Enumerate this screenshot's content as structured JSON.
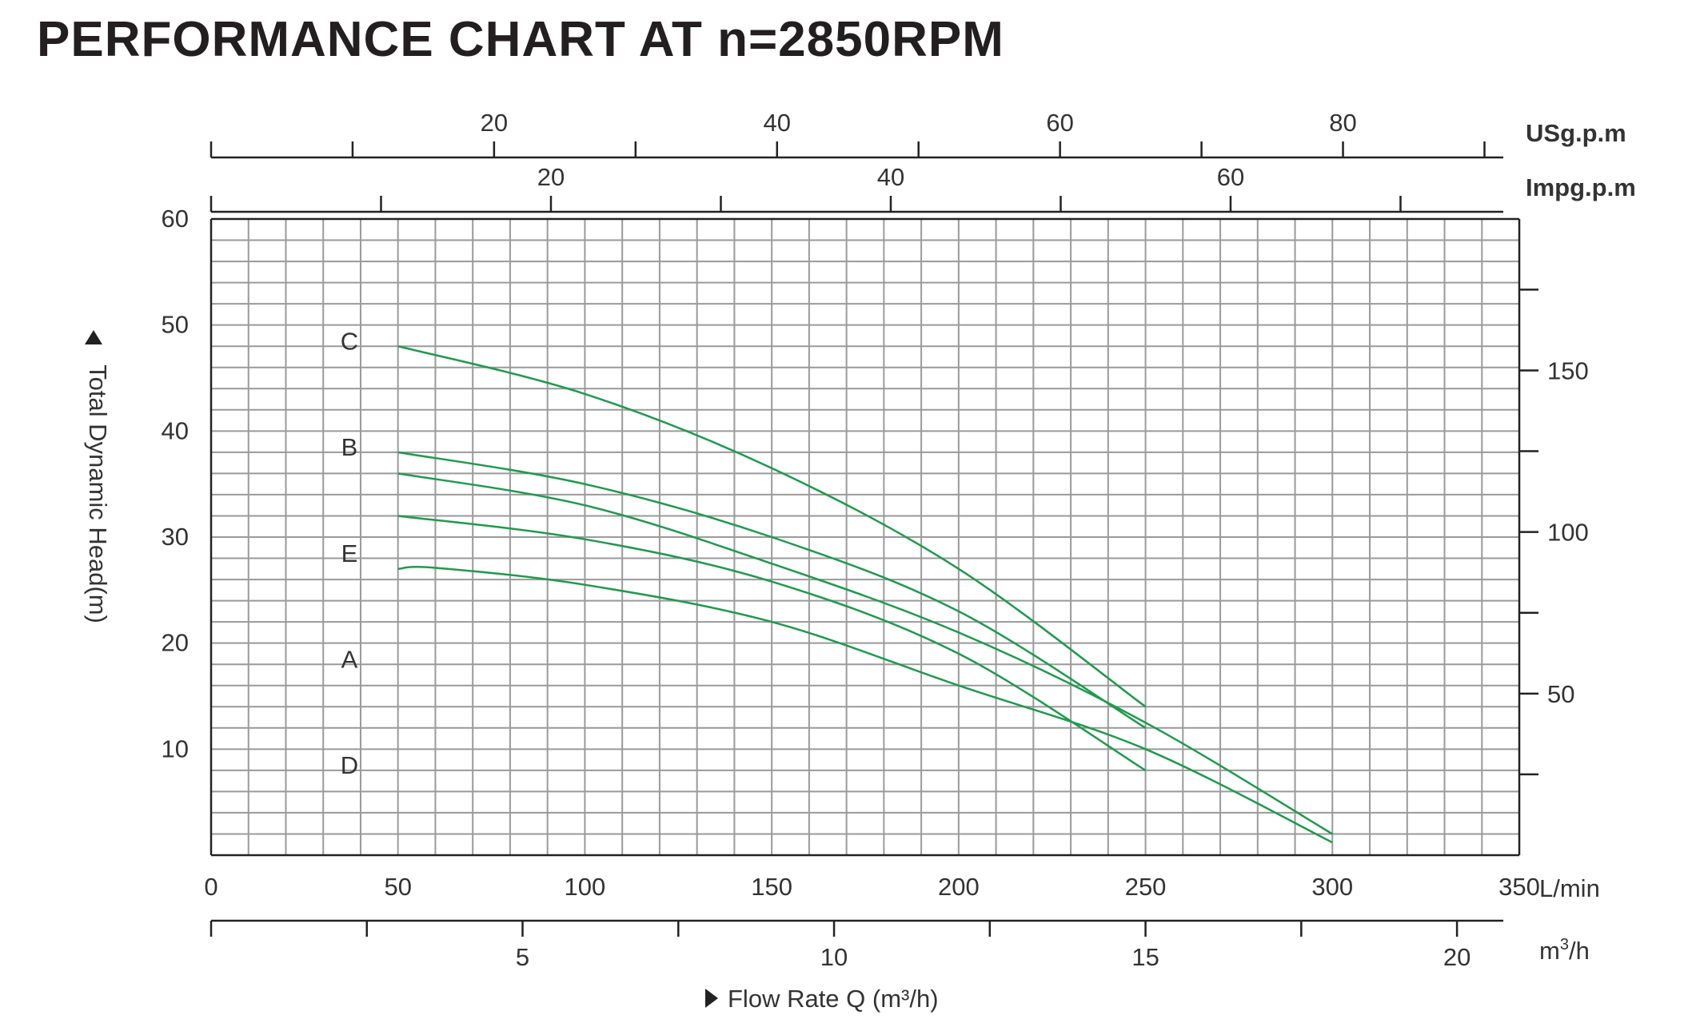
{
  "chart_data": {
    "type": "line",
    "title": "PERFORMANCE CHART AT n=2850RPM",
    "ylabel": "Total Dynamic Head(m)",
    "xlabel": "Flow Rate Q (m³/h)",
    "grid": true,
    "legend": "none",
    "curve_color": "#1f9a4c",
    "x_unit": "L/min",
    "xlim": [
      0,
      350
    ],
    "ylim": [
      0,
      60
    ],
    "x_ticks": [
      0,
      50,
      100,
      150,
      200,
      250,
      300,
      350
    ],
    "y_ticks": [
      10,
      20,
      30,
      40,
      50,
      60
    ],
    "right_axis": {
      "ylim": [
        0,
        196.85
      ],
      "ticks": [
        50,
        100,
        150
      ],
      "minor_ticks": [
        25,
        75,
        125,
        175
      ]
    },
    "top_axes": [
      {
        "unit": "USg.p.m",
        "xlim": [
          0,
          92.46
        ],
        "ticks": [
          20,
          40,
          60,
          80
        ],
        "minor_ticks": [
          10,
          30,
          50,
          70,
          90
        ]
      },
      {
        "unit": "Impg.p.m",
        "xlim": [
          0,
          76.99
        ],
        "ticks": [
          20,
          40,
          60
        ],
        "minor_ticks": [
          10,
          30,
          50,
          70
        ]
      }
    ],
    "bottom_axis": {
      "unit_base": "m",
      "unit_sup": "3",
      "unit_tail": "/h",
      "xlim": [
        0,
        21
      ],
      "ticks": [
        5,
        10,
        15,
        20
      ],
      "minor_ticks": [
        0,
        2.5,
        7.5,
        12.5,
        17.5
      ]
    },
    "series": [
      {
        "name": "C",
        "x": [
          50,
          100,
          150,
          200,
          250
        ],
        "y": [
          48,
          43.5,
          36.5,
          27,
          14
        ]
      },
      {
        "name": "B",
        "x": [
          50,
          100,
          150,
          200,
          250
        ],
        "y": [
          38,
          35,
          30,
          23,
          12
        ]
      },
      {
        "name": "E",
        "x": [
          50,
          100,
          150,
          200,
          250
        ],
        "y": [
          32,
          29.8,
          25.8,
          19,
          8
        ]
      },
      {
        "name": "A",
        "x": [
          50,
          100,
          150,
          200,
          250,
          300
        ],
        "y": [
          36,
          33,
          27.5,
          21,
          12.5,
          2
        ]
      },
      {
        "name": "D",
        "x": [
          50,
          60,
          100,
          150,
          200,
          250,
          300
        ],
        "y": [
          27,
          27.1,
          25.5,
          22,
          16,
          10,
          1.2
        ]
      }
    ],
    "curve_labels": [
      {
        "name": "C",
        "y": 48.5
      },
      {
        "name": "B",
        "y": 38.5
      },
      {
        "name": "E",
        "y": 28.5
      },
      {
        "name": "A",
        "y": 18.5
      },
      {
        "name": "D",
        "y": 8.5
      }
    ]
  }
}
